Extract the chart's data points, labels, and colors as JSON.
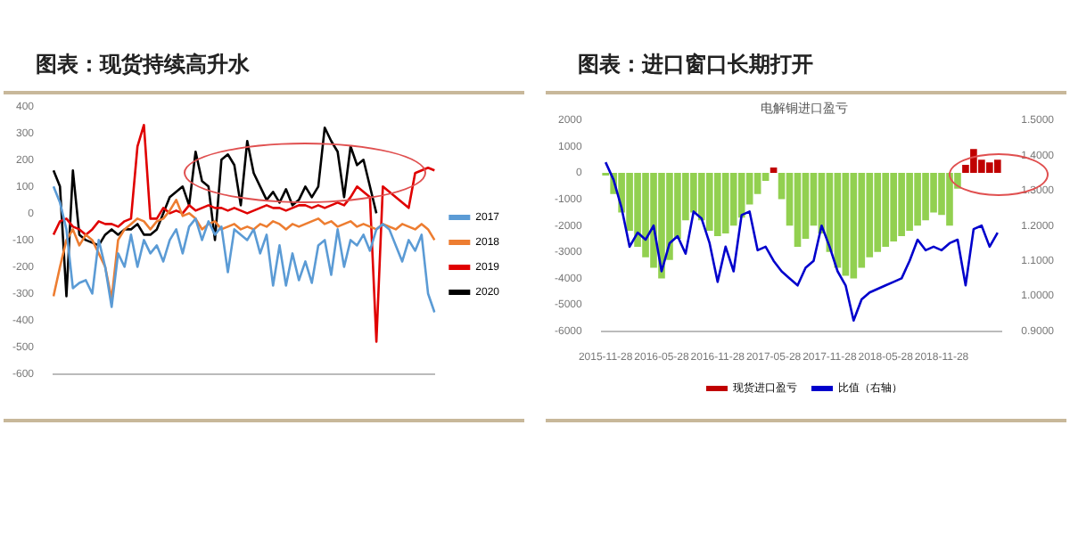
{
  "chart_data": [
    {
      "type": "line",
      "title": "图表：现货持续高升水",
      "categories": [
        null,
        null,
        null,
        null,
        null,
        null,
        null,
        null,
        null,
        null,
        null,
        null,
        null,
        null,
        null,
        null,
        null,
        null,
        null,
        null,
        null,
        null,
        null,
        null,
        null,
        null,
        null,
        null,
        null,
        null,
        null,
        null,
        null,
        null,
        null,
        null,
        null,
        null,
        null,
        null,
        null,
        null,
        null,
        null,
        null,
        null,
        null,
        null,
        null,
        null,
        null,
        null,
        null,
        null,
        null,
        null,
        null,
        null,
        null,
        null
      ],
      "series": [
        {
          "name": "2017",
          "color": "#5b9bd5",
          "values": [
            100,
            40,
            -60,
            -280,
            -260,
            -250,
            -300,
            -100,
            -200,
            -350,
            -150,
            -200,
            -80,
            -200,
            -100,
            -150,
            -120,
            -180,
            -100,
            -60,
            -150,
            -50,
            -20,
            -100,
            -30,
            -80,
            -50,
            -220,
            -60,
            -80,
            -100,
            -60,
            -150,
            -80,
            -270,
            -120,
            -270,
            -150,
            -250,
            -180,
            -260,
            -120,
            -100,
            -230,
            -60,
            -200,
            -100,
            -120,
            -80,
            -140,
            -60,
            -40,
            -60,
            -120,
            -180,
            -100,
            -140,
            -80,
            -300,
            -370
          ]
        },
        {
          "name": "2018",
          "color": "#ed7d31",
          "values": [
            -310,
            -200,
            -100,
            -60,
            -120,
            -80,
            -100,
            -150,
            -200,
            -320,
            -100,
            -60,
            -40,
            -20,
            -30,
            -60,
            -30,
            -20,
            10,
            50,
            -10,
            0,
            -20,
            -60,
            -40,
            -30,
            -60,
            -50,
            -40,
            -60,
            -50,
            -60,
            -40,
            -50,
            -30,
            -40,
            -60,
            -40,
            -50,
            -40,
            -30,
            -20,
            -40,
            -30,
            -50,
            -40,
            -30,
            -50,
            -40,
            -50,
            -60,
            -40,
            -50,
            -60,
            -40,
            -50,
            -60,
            -40,
            -60,
            -100
          ]
        },
        {
          "name": "2019",
          "color": "#e00000",
          "values": [
            -80,
            -30,
            -20,
            -50,
            -60,
            -80,
            -60,
            -30,
            -40,
            -40,
            -50,
            -30,
            -20,
            250,
            330,
            -20,
            -20,
            20,
            0,
            10,
            0,
            30,
            10,
            20,
            30,
            20,
            20,
            10,
            20,
            10,
            0,
            10,
            20,
            30,
            20,
            20,
            10,
            20,
            30,
            30,
            20,
            30,
            20,
            30,
            40,
            30,
            60,
            100,
            80,
            60,
            -480,
            100,
            80,
            60,
            40,
            20,
            150,
            160,
            170,
            160
          ]
        },
        {
          "name": "2020",
          "color": "#000000",
          "values": [
            160,
            100,
            -310,
            160,
            -80,
            -100,
            -110,
            -120,
            -80,
            -60,
            -80,
            -60,
            -60,
            -40,
            -80,
            -80,
            -60,
            0,
            60,
            80,
            100,
            30,
            230,
            120,
            100,
            -100,
            200,
            220,
            180,
            30,
            270,
            150,
            100,
            50,
            80,
            40,
            90,
            30,
            50,
            100,
            60,
            100,
            320,
            270,
            230,
            60,
            250,
            180,
            200,
            100,
            0,
            null,
            null,
            null,
            null,
            null,
            null,
            null,
            null,
            null
          ]
        }
      ],
      "ylim": [
        -600,
        400
      ],
      "yticks": [
        -600,
        -500,
        -400,
        -300,
        -200,
        -100,
        0,
        100,
        200,
        300,
        400
      ],
      "legend": "right"
    },
    {
      "type": "bar",
      "title": "图表：进口窗口长期打开",
      "subtitle": "电解铜进口盈亏",
      "categories": [
        "2015-11-28",
        null,
        null,
        null,
        null,
        null,
        null,
        "2016-05-28",
        null,
        null,
        null,
        null,
        null,
        null,
        "2016-11-28",
        null,
        null,
        null,
        null,
        null,
        null,
        "2017-05-28",
        null,
        null,
        null,
        null,
        null,
        null,
        "2017-11-28",
        null,
        null,
        null,
        null,
        null,
        null,
        "2018-05-28",
        null,
        null,
        null,
        null,
        null,
        null,
        "2018-11-28",
        null,
        null,
        null,
        null,
        null,
        null,
        null
      ],
      "series": [
        {
          "name": "现货进口盈亏",
          "color": "#c00000",
          "values": [
            -100,
            -800,
            -1500,
            -2200,
            -2800,
            -3200,
            -3600,
            -4000,
            -3300,
            -2500,
            -1800,
            -1500,
            -1800,
            -2200,
            -2400,
            -2300,
            -2000,
            -1700,
            -1200,
            -800,
            -300,
            200,
            -1000,
            -2000,
            -2800,
            -2500,
            -2000,
            -2300,
            -3000,
            -3600,
            -3900,
            -4000,
            -3600,
            -3200,
            -3000,
            -2800,
            -2600,
            -2400,
            -2200,
            -2000,
            -1800,
            -1500,
            -1600,
            -2000,
            -600,
            300,
            900,
            500,
            400,
            500
          ],
          "colors": [
            "#92d050",
            "#92d050",
            "#92d050",
            "#92d050",
            "#92d050",
            "#92d050",
            "#92d050",
            "#92d050",
            "#92d050",
            "#92d050",
            "#92d050",
            "#92d050",
            "#92d050",
            "#92d050",
            "#92d050",
            "#92d050",
            "#92d050",
            "#92d050",
            "#92d050",
            "#92d050",
            "#92d050",
            "#c00000",
            "#92d050",
            "#92d050",
            "#92d050",
            "#92d050",
            "#92d050",
            "#92d050",
            "#92d050",
            "#92d050",
            "#92d050",
            "#92d050",
            "#92d050",
            "#92d050",
            "#92d050",
            "#92d050",
            "#92d050",
            "#92d050",
            "#92d050",
            "#92d050",
            "#92d050",
            "#92d050",
            "#92d050",
            "#92d050",
            "#92d050",
            "#c00000",
            "#c00000",
            "#c00000",
            "#c00000",
            "#c00000"
          ]
        },
        {
          "name": "比值（右轴）",
          "type": "line",
          "axis": "y2",
          "color": "#0000cc",
          "values": [
            1.38,
            1.33,
            1.25,
            1.14,
            1.18,
            1.16,
            1.2,
            1.07,
            1.15,
            1.17,
            1.12,
            1.24,
            1.22,
            1.15,
            1.04,
            1.14,
            1.07,
            1.23,
            1.24,
            1.13,
            1.14,
            1.1,
            1.07,
            1.05,
            1.03,
            1.08,
            1.1,
            1.2,
            1.14,
            1.07,
            1.03,
            0.93,
            0.99,
            1.01,
            1.02,
            1.03,
            1.04,
            1.05,
            1.1,
            1.16,
            1.13,
            1.14,
            1.13,
            1.15,
            1.16,
            1.03,
            1.19,
            1.2,
            1.14,
            1.18
          ]
        }
      ],
      "ylim": [
        -6000,
        2000
      ],
      "yticks": [
        -6000,
        -5000,
        -4000,
        -3000,
        -2000,
        -1000,
        0,
        1000,
        2000
      ],
      "y2lim": [
        0.9,
        1.5
      ],
      "y2ticks": [
        {
          "value": 0.9,
          "label": "0.9000"
        },
        {
          "value": 1.0,
          "label": "1.0000"
        },
        {
          "value": 1.1,
          "label": "1.1000"
        },
        {
          "value": 1.2,
          "label": "1.2000"
        },
        {
          "value": 1.3,
          "label": "1.3000"
        },
        {
          "value": 1.4,
          "label": "1.4000"
        },
        {
          "value": 1.5,
          "label": "1.5000"
        }
      ],
      "legend": "bottom"
    }
  ]
}
